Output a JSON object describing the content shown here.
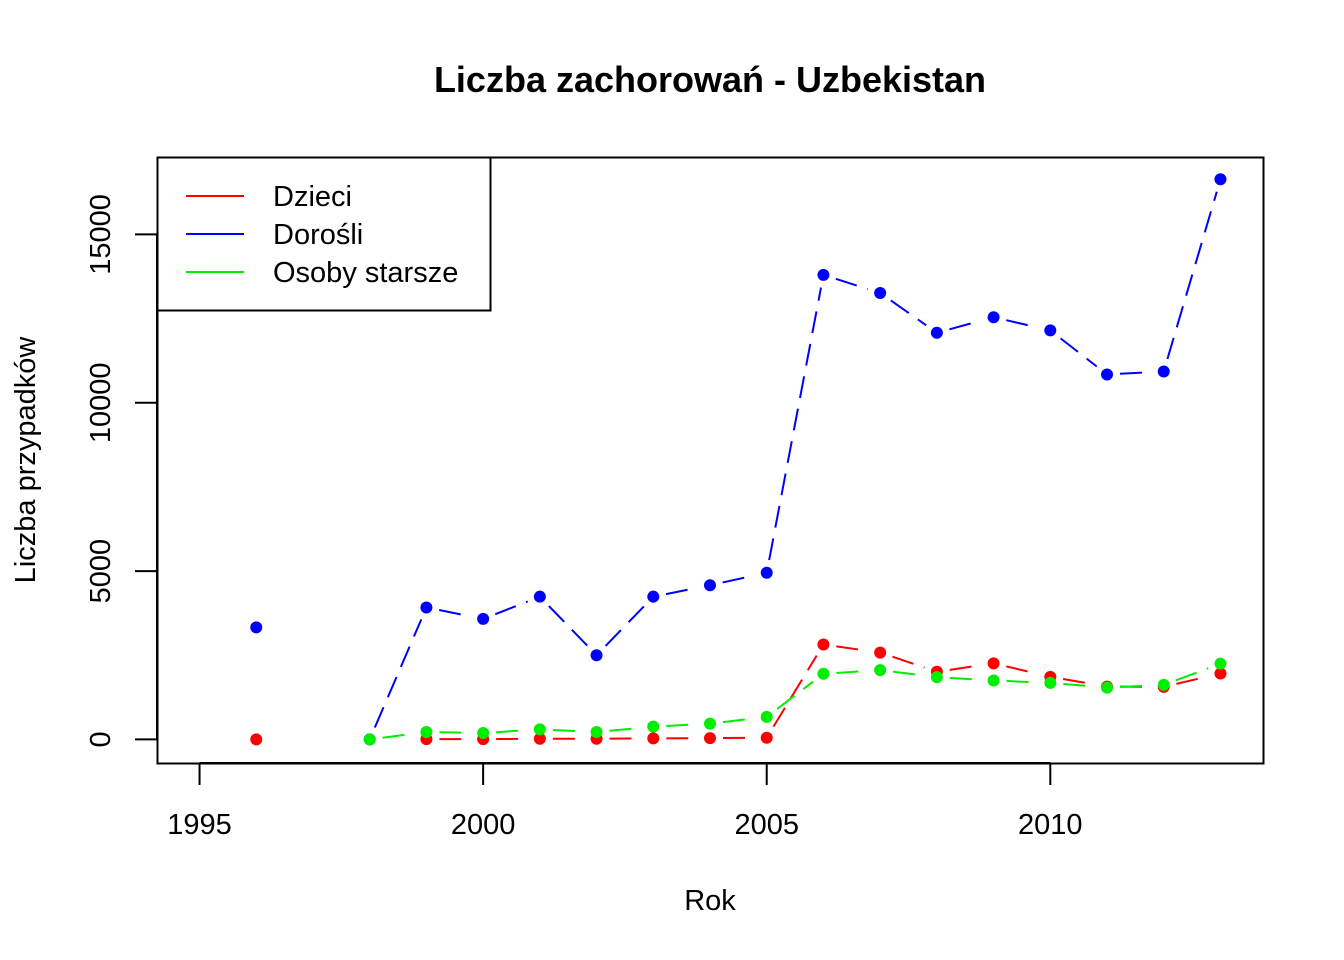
{
  "chart_data": {
    "type": "line",
    "title": "Liczba zachorowań -  Uzbekistan",
    "xlabel": "Rok",
    "ylabel": "Liczba przypadków",
    "xlim": [
      1994.25,
      2013.75
    ],
    "ylim": [
      -700,
      17300
    ],
    "x_ticks": [
      1995,
      2000,
      2005,
      2010
    ],
    "y_ticks": [
      0,
      5000,
      10000,
      15000
    ],
    "grid": false,
    "legend_position": "top-left",
    "x": [
      1996,
      1997,
      1998,
      1999,
      2000,
      2001,
      2002,
      2003,
      2004,
      2005,
      2006,
      2007,
      2008,
      2009,
      2010,
      2011,
      2012,
      2013
    ],
    "series": [
      {
        "name": "Dzieci",
        "color": "#ff0000",
        "line_style": "dashed",
        "values": [
          0,
          null,
          null,
          10,
          10,
          20,
          20,
          30,
          40,
          50,
          2820,
          2580,
          2010,
          2260,
          1860,
          1570,
          1560,
          1960
        ]
      },
      {
        "name": "Dorośli",
        "color": "#0000ff",
        "line_style": "dashed",
        "values": [
          3330,
          null,
          0,
          3920,
          3580,
          4240,
          2500,
          4240,
          4580,
          4950,
          13800,
          13260,
          12080,
          12540,
          12150,
          10840,
          10930,
          16640
        ]
      },
      {
        "name": "Osoby starsze",
        "color": "#00ee00",
        "line_style": "dashed",
        "values": [
          null,
          null,
          0,
          220,
          190,
          300,
          220,
          380,
          470,
          670,
          1950,
          2060,
          1850,
          1750,
          1680,
          1540,
          1620,
          2250
        ]
      }
    ]
  }
}
